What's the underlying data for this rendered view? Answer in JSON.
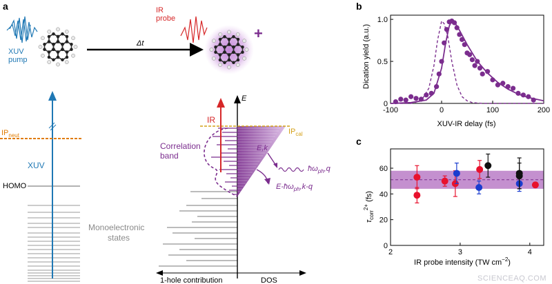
{
  "panel_a": {
    "label": "a",
    "xuv_pump": [
      "XUV",
      "pump"
    ],
    "ir_probe": [
      "IR",
      "probe"
    ],
    "delta_t": "Δt",
    "plus": "+",
    "ip_neut_main": "IP",
    "ip_neut_sub": "neut",
    "xuv": "XUV",
    "homo": "HOMO",
    "monoelectronic": [
      "Monoelectronic",
      "states"
    ],
    "e_axis": "E",
    "ir_arrow": "IR",
    "ip_cal_main": "IP",
    "ip_cal_sub": "cal",
    "correlation_band": [
      "Correlation",
      "band"
    ],
    "ek": "E,k",
    "phonon_main": "ħω",
    "phonon_sub": "ph",
    "phonon_q": ",q",
    "e_minus_main": "E-ħω",
    "e_minus_sub": "ph",
    "e_minus_tail": ",k-q",
    "one_hole": "1-hole contribution",
    "dos": "DOS",
    "colors": {
      "blue": "#1f78b4",
      "red": "#d62728",
      "purple": "#7b2d8e",
      "orange": "#e07b00",
      "gold": "#d4a017"
    }
  },
  "panel_b": {
    "label": "b",
    "ylabel": "Dication yield (a.u.)",
    "xlabel": "XUV-IR delay (fs)"
  },
  "panel_c": {
    "label": "c",
    "ylabel_main": "τ",
    "ylabel_sub": "corr",
    "ylabel_sup": "2+",
    "ylabel_tail": " (fs)",
    "xlabel_main": "IR probe intensity (TW cm",
    "xlabel_sup": "−2",
    "xlabel_tail": ")"
  },
  "watermark": "SCIENCEAQ.COM",
  "chart_data": [
    {
      "type": "scatter",
      "title": "",
      "xlabel": "XUV-IR delay (fs)",
      "ylabel": "Dication yield (a.u.)",
      "xlim": [
        -100,
        200
      ],
      "ylim": [
        0,
        1.05
      ],
      "xticks": [
        -100,
        0,
        100,
        200
      ],
      "yticks": [
        0,
        0.5,
        1.0
      ],
      "ytick_labels": [
        "0",
        "0.5",
        "1.0"
      ],
      "grid": false,
      "series": [
        {
          "kind": "points",
          "color": "#7b2d8e",
          "x": [
            -90,
            -80,
            -70,
            -60,
            -50,
            -40,
            -30,
            -20,
            -10,
            -5,
            0,
            5,
            10,
            15,
            20,
            25,
            30,
            35,
            40,
            45,
            50,
            55,
            60,
            65,
            70,
            75,
            80,
            90,
            100,
            110,
            120,
            130,
            140,
            150,
            160,
            170,
            180
          ],
          "y": [
            0.02,
            0.05,
            0.04,
            0.08,
            0.06,
            0.05,
            0.1,
            0.12,
            0.2,
            0.35,
            0.5,
            0.72,
            0.88,
            0.97,
            0.98,
            0.96,
            0.9,
            0.82,
            0.76,
            0.7,
            0.6,
            0.58,
            0.52,
            0.45,
            0.5,
            0.42,
            0.35,
            0.38,
            0.28,
            0.22,
            0.24,
            0.2,
            0.18,
            0.12,
            0.1,
            0.08,
            0.04
          ]
        },
        {
          "kind": "fit-line",
          "color": "#7b2d8e",
          "x": [
            -100,
            -60,
            -30,
            -15,
            0,
            8,
            15,
            20,
            25,
            35,
            50,
            70,
            90,
            110,
            130,
            150,
            170,
            200
          ],
          "y": [
            0.0,
            0.01,
            0.04,
            0.12,
            0.42,
            0.72,
            0.92,
            0.98,
            0.97,
            0.87,
            0.7,
            0.5,
            0.36,
            0.25,
            0.17,
            0.11,
            0.07,
            0.03
          ]
        },
        {
          "kind": "dashed-line",
          "color": "#7b2d8e",
          "x": [
            -100,
            -60,
            -40,
            -25,
            -15,
            -8,
            0,
            5,
            12,
            20,
            30,
            40,
            50,
            60,
            80,
            200
          ],
          "y": [
            0.0,
            0.0,
            0.03,
            0.18,
            0.45,
            0.75,
            0.98,
            0.95,
            0.8,
            0.5,
            0.22,
            0.08,
            0.03,
            0.01,
            0.0,
            0.0
          ]
        }
      ]
    },
    {
      "type": "scatter",
      "title": "",
      "xlabel": "IR probe intensity (TW cm−2)",
      "ylabel": "τcorr2+ (fs)",
      "xlim": [
        2,
        4.2
      ],
      "ylim": [
        0,
        75
      ],
      "xticks": [
        2,
        3,
        4
      ],
      "yticks": [
        0,
        20,
        40,
        60
      ],
      "grid": false,
      "band": {
        "mean": 51,
        "low": 44,
        "high": 58,
        "color": "#b06bbf"
      },
      "series": [
        {
          "color": "#e8112d",
          "x": [
            2.38,
            2.38,
            2.78,
            2.93,
            3.28,
            4.08
          ],
          "y": [
            53,
            39,
            50,
            48,
            59,
            47
          ],
          "err": [
            9,
            6,
            4,
            10,
            7,
            2
          ]
        },
        {
          "color": "#1a3ccf",
          "x": [
            2.95,
            3.27,
            3.85
          ],
          "y": [
            56,
            45,
            48
          ],
          "err": [
            8,
            5,
            6
          ]
        },
        {
          "color": "#111111",
          "x": [
            3.4,
            3.85,
            3.85
          ],
          "y": [
            62,
            56,
            54
          ],
          "err": [
            9,
            12,
            10
          ]
        }
      ]
    }
  ]
}
